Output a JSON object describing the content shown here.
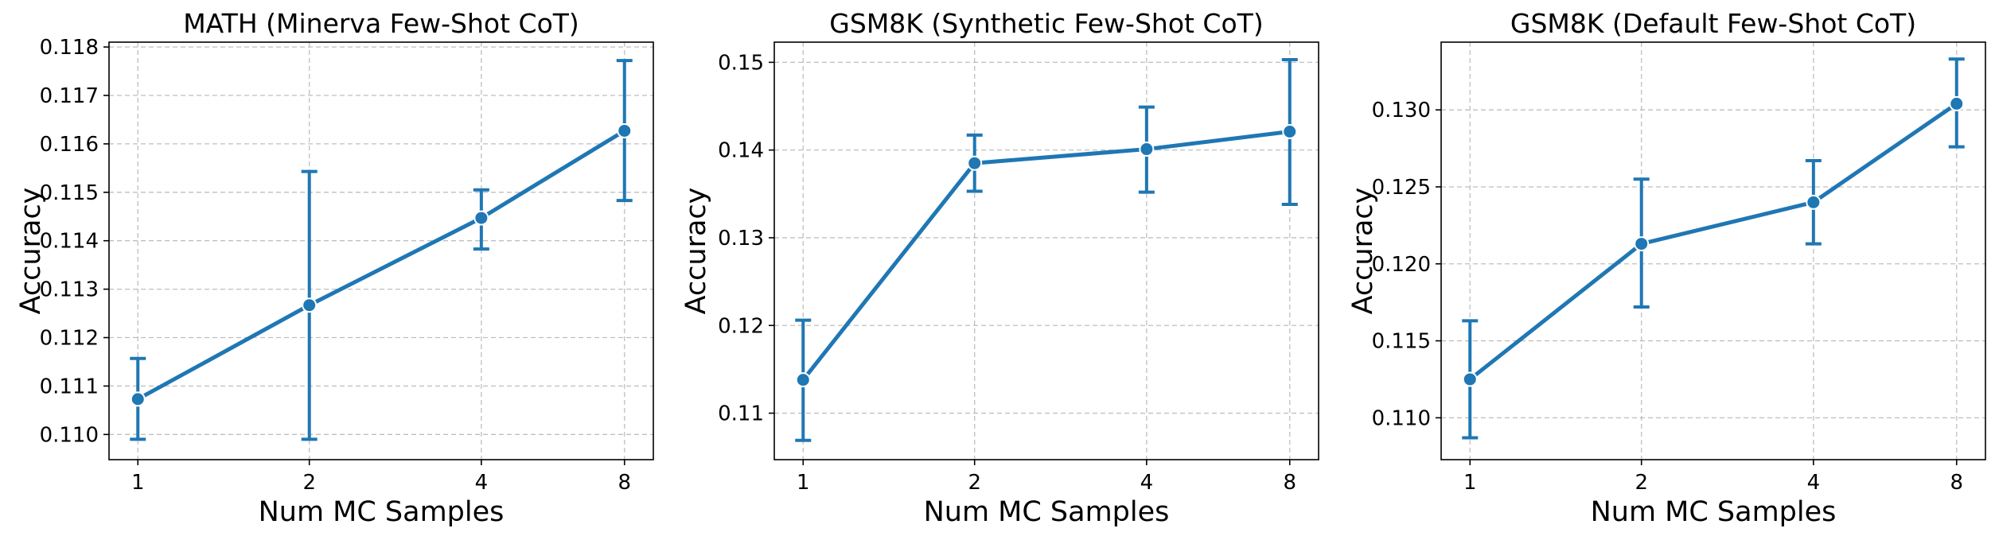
{
  "chart_data": [
    {
      "type": "line",
      "title": "MATH (Minerva Few-Shot CoT)",
      "xlabel": "Num MC Samples",
      "ylabel": "Accuracy",
      "categories": [
        "1",
        "2",
        "4",
        "8"
      ],
      "series": [
        {
          "values": [
            0.11073,
            0.11267,
            0.11447,
            0.11627
          ],
          "err_low": [
            0.1099,
            0.1099,
            0.11383,
            0.11483
          ],
          "err_high": [
            0.11157,
            0.11543,
            0.11505,
            0.11772
          ]
        }
      ],
      "ylim": [
        0.10948,
        0.1181
      ],
      "yticks": [
        0.11,
        0.111,
        0.112,
        0.113,
        0.114,
        0.115,
        0.116,
        0.117,
        0.118
      ],
      "ytick_labels": [
        "0.110",
        "0.111",
        "0.112",
        "0.113",
        "0.114",
        "0.115",
        "0.116",
        "0.117",
        "0.118"
      ],
      "grid": true,
      "color": "#1f77b4"
    },
    {
      "type": "line",
      "title": "GSM8K (Synthetic Few-Shot CoT)",
      "xlabel": "Num MC Samples",
      "ylabel": "Accuracy",
      "categories": [
        "1",
        "2",
        "4",
        "8"
      ],
      "series": [
        {
          "values": [
            0.1138,
            0.1385,
            0.1401,
            0.1421
          ],
          "err_low": [
            0.1069,
            0.1353,
            0.1352,
            0.1338
          ],
          "err_high": [
            0.1206,
            0.1417,
            0.1449,
            0.1503
          ]
        }
      ],
      "ylim": [
        0.1047,
        0.1523
      ],
      "yticks": [
        0.11,
        0.12,
        0.13,
        0.14,
        0.15
      ],
      "ytick_labels": [
        "0.11",
        "0.12",
        "0.13",
        "0.14",
        "0.15"
      ],
      "grid": true,
      "color": "#1f77b4"
    },
    {
      "type": "line",
      "title": "GSM8K (Default Few-Shot CoT)",
      "xlabel": "Num MC Samples",
      "ylabel": "Accuracy",
      "categories": [
        "1",
        "2",
        "4",
        "8"
      ],
      "series": [
        {
          "values": [
            0.1125,
            0.1213,
            0.124,
            0.1304
          ],
          "err_low": [
            0.1087,
            0.1172,
            0.1213,
            0.1276
          ],
          "err_high": [
            0.1163,
            0.1255,
            0.1267,
            0.1333
          ]
        }
      ],
      "ylim": [
        0.10728,
        0.1344
      ],
      "yticks": [
        0.11,
        0.115,
        0.12,
        0.125,
        0.13
      ],
      "ytick_labels": [
        "0.110",
        "0.115",
        "0.120",
        "0.125",
        "0.130"
      ],
      "grid": true,
      "color": "#1f77b4"
    }
  ]
}
